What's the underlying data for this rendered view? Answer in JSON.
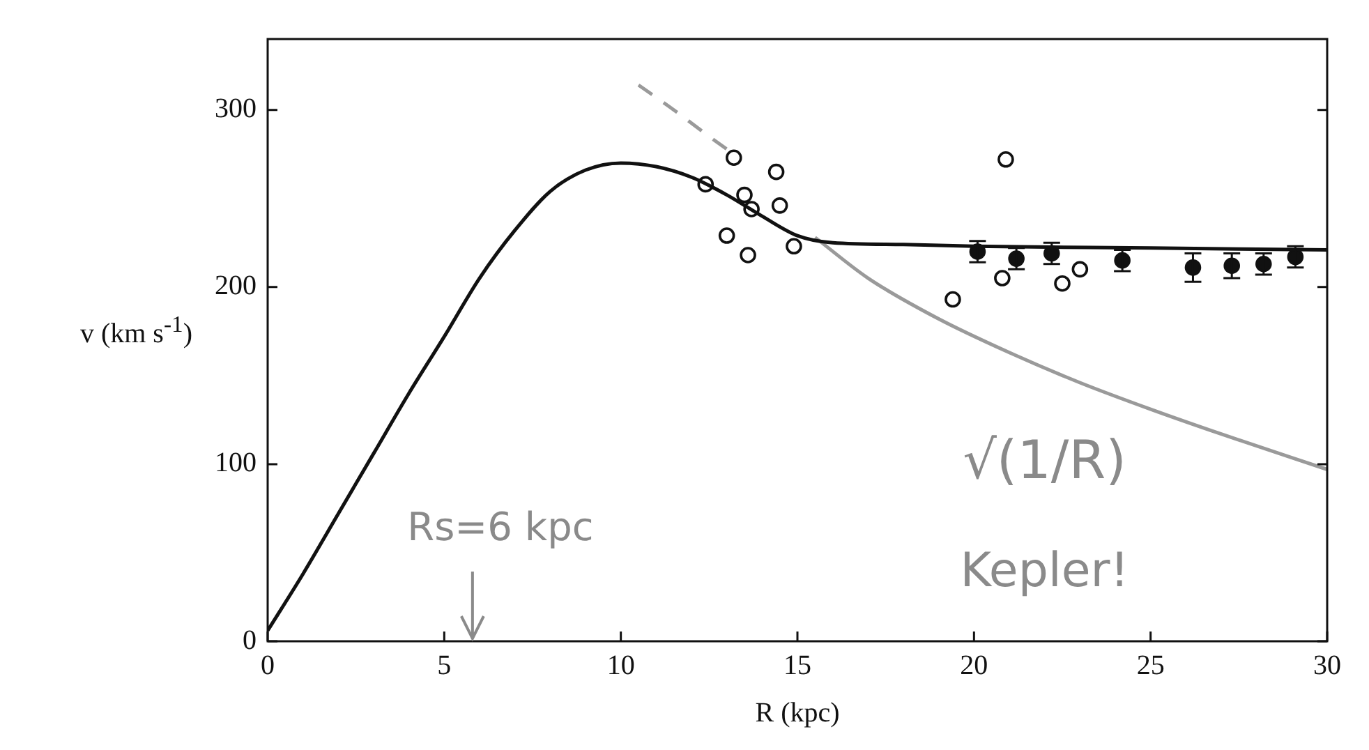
{
  "chart_data": {
    "type": "scatter",
    "xlabel": "R (kpc)",
    "ylabel": "v (km s$^{-1}$)",
    "xlim": [
      0,
      30
    ],
    "xticks": [
      0,
      5,
      10,
      15,
      20,
      25,
      30
    ],
    "ylim": [
      0,
      340
    ],
    "yticks": [
      0,
      100,
      200,
      300
    ],
    "grid": false,
    "legend": false,
    "series": [
      {
        "type": "line",
        "color": "#111111",
        "marker": "none",
        "line_style": "solid",
        "x": [
          0,
          1,
          2,
          3,
          4,
          5,
          6,
          7,
          8,
          9,
          10,
          11,
          12,
          13,
          14,
          15,
          16,
          18,
          20,
          25,
          30
        ],
        "values": [
          6,
          38,
          72,
          106,
          140,
          172,
          205,
          232,
          254,
          266,
          270,
          268,
          262,
          252,
          240,
          229,
          225,
          224,
          223,
          222,
          221
        ]
      },
      {
        "type": "line",
        "color": "#9a9a9a",
        "marker": "none",
        "line_style": "dashed",
        "x": [
          10.5,
          11.5,
          12.5,
          13.2
        ],
        "values": [
          314,
          300,
          285,
          275
        ]
      },
      {
        "type": "line",
        "color": "#9a9a9a",
        "marker": "none",
        "line_style": "solid",
        "x": [
          15.5,
          17,
          19,
          21,
          23,
          25,
          27,
          30
        ],
        "values": [
          228,
          205,
          182,
          163,
          146,
          131,
          117,
          97
        ]
      },
      {
        "color": "#111111",
        "marker": "circle",
        "x": [
          12.4,
          13.2,
          14.4,
          13.5,
          13.7,
          14.5,
          13.0,
          13.6,
          14.9,
          19.4,
          20.8,
          20.9,
          22.5,
          23.0
        ],
        "values": [
          258,
          273,
          265,
          252,
          244,
          246,
          229,
          218,
          223,
          193,
          205,
          272,
          202,
          210
        ]
      },
      {
        "color": "#111111",
        "marker": "circle",
        "x": [
          20.1,
          21.2,
          22.2,
          24.2,
          26.2,
          27.3,
          28.2,
          29.1
        ],
        "values": [
          220,
          216,
          219,
          215,
          211,
          212,
          213,
          217
        ],
        "errors": [
          6,
          6,
          6,
          6,
          8,
          7,
          6,
          6
        ]
      }
    ],
    "annotations": [
      "Rs=6 kpc",
      "√(1/R)",
      "Kepler!"
    ]
  }
}
